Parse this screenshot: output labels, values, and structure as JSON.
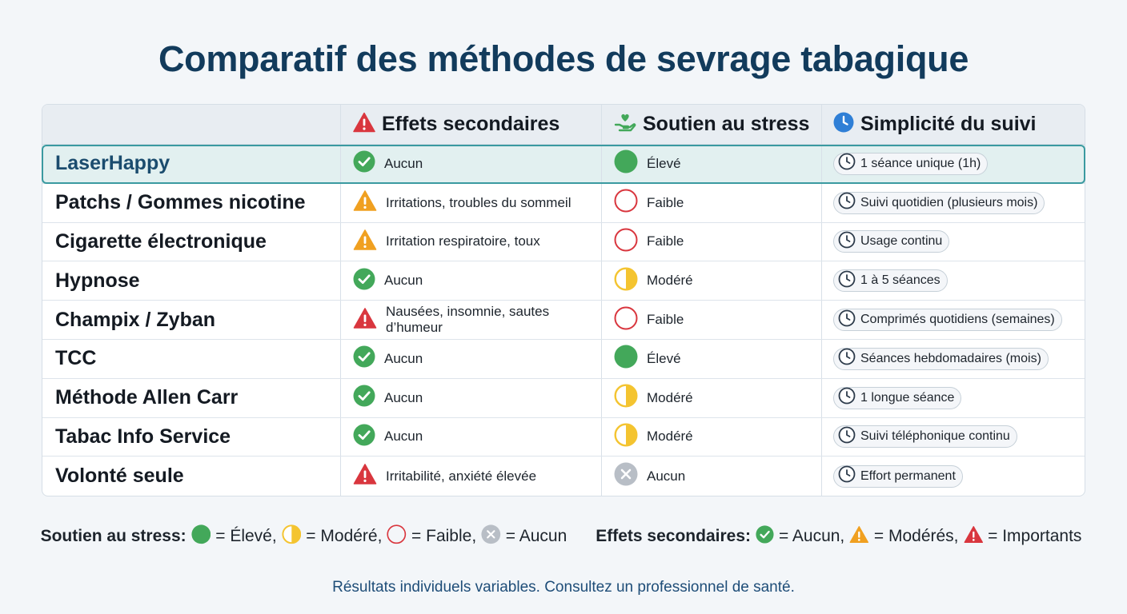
{
  "title": "Comparatif des méthodes de sevrage tabagique",
  "headers": {
    "method": "",
    "side_effects": "Effets secondaires",
    "stress_support": "Soutien au stress",
    "simplicity": "Simplicité du suivi"
  },
  "header_icons": {
    "side_effects": "warning-red-icon",
    "stress_support": "hand-heart-icon",
    "simplicity": "clock-icon"
  },
  "rows": [
    {
      "name": "LaserHappy",
      "side_icon": "check",
      "side": "Aucun",
      "stress_icon": "full",
      "stress": "Élevé",
      "follow": "1 séance unique (1h)"
    },
    {
      "name": "Patchs / Gommes nicotine",
      "side_icon": "warn-orange",
      "side": "Irritations, troubles du sommeil",
      "stress_icon": "empty",
      "stress": "Faible",
      "follow": "Suivi quotidien (plusieurs mois)"
    },
    {
      "name": "Cigarette électronique",
      "side_icon": "warn-orange",
      "side": "Irritation respiratoire, toux",
      "stress_icon": "empty",
      "stress": "Faible",
      "follow": "Usage continu"
    },
    {
      "name": "Hypnose",
      "side_icon": "check",
      "side": "Aucun",
      "stress_icon": "half",
      "stress": "Modéré",
      "follow": "1 à 5 séances"
    },
    {
      "name": "Champix / Zyban",
      "side_icon": "warn-red",
      "side": "Nausées, insomnie, sautes d’humeur",
      "stress_icon": "empty",
      "stress": "Faible",
      "follow": "Comprimés quotidiens (semaines)"
    },
    {
      "name": "TCC",
      "side_icon": "check",
      "side": "Aucun",
      "stress_icon": "full",
      "stress": "Élevé",
      "follow": "Séances hebdomadaires (mois)"
    },
    {
      "name": "Méthode Allen Carr",
      "side_icon": "check",
      "side": "Aucun",
      "stress_icon": "half",
      "stress": "Modéré",
      "follow": "1 longue séance"
    },
    {
      "name": "Tabac Info Service",
      "side_icon": "check",
      "side": "Aucun",
      "stress_icon": "half",
      "stress": "Modéré",
      "follow": "Suivi téléphonique continu"
    },
    {
      "name": "Volonté seule",
      "side_icon": "warn-red",
      "side": "Irritabilité, anxiété élevée",
      "stress_icon": "none",
      "stress": "Aucun",
      "follow": "Effort permanent"
    }
  ],
  "legend": {
    "stress_label": "Soutien au stress:",
    "stress_items": [
      {
        "icon": "full",
        "text": "= Élevé,"
      },
      {
        "icon": "half",
        "text": "= Modéré,"
      },
      {
        "icon": "empty",
        "text": "= Faible,"
      },
      {
        "icon": "none",
        "text": "= Aucun"
      }
    ],
    "side_label": "Effets secondaires:",
    "side_items": [
      {
        "icon": "check",
        "text": "= Aucun,"
      },
      {
        "icon": "warn-orange",
        "text": "= Modérés,"
      },
      {
        "icon": "warn-red",
        "text": "= Importants"
      }
    ]
  },
  "footer": "Résultats individuels variables. Consultez un professionnel de santé.",
  "colors": {
    "title": "#123b5c",
    "highlight_bg": "#e2f0f0",
    "highlight_border": "#3a9aa0",
    "green": "#43a85a",
    "orange": "#f0a020",
    "red": "#d9363e",
    "yellow": "#f4c430",
    "grey": "#b8bec6",
    "clock_blue": "#2f7fd6"
  }
}
